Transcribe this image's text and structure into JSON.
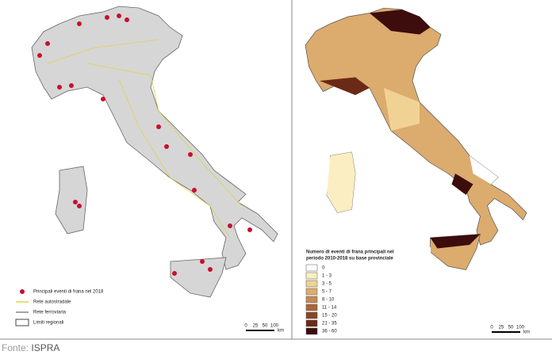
{
  "left_map": {
    "legend": [
      "Principali eventi di frana nel 2018",
      "Rete autostradale",
      "Rete ferroviaria",
      "Limiti regionali"
    ],
    "scale_bar": {
      "labels": [
        "0",
        "25",
        "50",
        "100"
      ],
      "unit": "km"
    }
  },
  "right_map": {
    "legend_title": [
      "Numero di eventi di frana principali nel",
      "periodo 2010-2018 su base provinciale"
    ],
    "classes": [
      {
        "label": "0",
        "color": "#ffffff"
      },
      {
        "label": "1 - 3",
        "color": "#fbeec3"
      },
      {
        "label": "3 - 5",
        "color": "#f0d394"
      },
      {
        "label": "5 - 7",
        "color": "#dcab6e"
      },
      {
        "label": "8 - 10",
        "color": "#c68a52"
      },
      {
        "label": "11 - 14",
        "color": "#a8663a"
      },
      {
        "label": "15 - 20",
        "color": "#8a4526"
      },
      {
        "label": "21 - 35",
        "color": "#6b2a17"
      },
      {
        "label": "36 - 60",
        "color": "#3d0c0c"
      }
    ],
    "scale_bar": {
      "labels": [
        "0",
        "25",
        "50",
        "100"
      ],
      "unit": "km"
    }
  },
  "footer": {
    "source_label": "Fonte:",
    "source": "ISPRA"
  }
}
